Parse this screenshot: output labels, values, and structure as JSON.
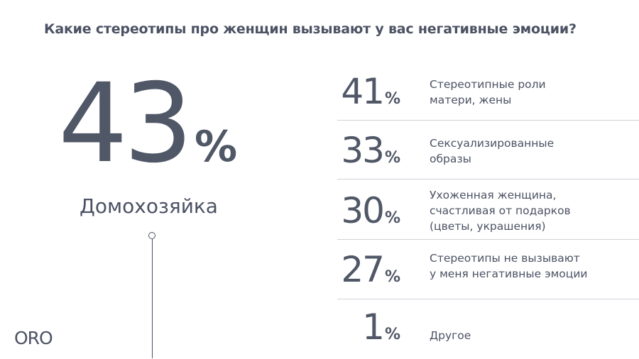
{
  "title": "Какие стереотипы про женщин вызывают у вас негативные эмоции?",
  "logo": "ORO",
  "highlight": {
    "value": "43",
    "unit": "%",
    "label": "Домохозяйка"
  },
  "chart_data": {
    "type": "table",
    "title": "Какие стереотипы про женщин вызывают у вас негативные эмоции?",
    "unit": "%",
    "rows": [
      {
        "value": "41",
        "label_lines": [
          "Стереотипные роли",
          "матери, жены"
        ]
      },
      {
        "value": "33",
        "label_lines": [
          "Сексуализированные",
          "образы"
        ]
      },
      {
        "value": "30",
        "label_lines": [
          "Ухоженная женщина,",
          "счастливая от подарков",
          "(цветы, украшения)"
        ]
      },
      {
        "value": "27",
        "label_lines": [
          "Стереотипы не вызывают",
          "у меня негативные эмоции"
        ]
      },
      {
        "value": "1",
        "label_lines": [
          "Другое"
        ]
      }
    ]
  },
  "colors": {
    "text": "#4b5263",
    "divider": "#cfd2d8",
    "background": "#ffffff"
  }
}
